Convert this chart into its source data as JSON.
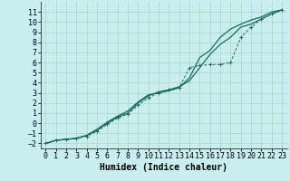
{
  "xlabel": "Humidex (Indice chaleur)",
  "bg_color": "#c8eef0",
  "grid_color": "#b0d8c8",
  "line_color": "#1a6b5a",
  "xlim": [
    -0.5,
    23.5
  ],
  "ylim": [
    -2.5,
    12.0
  ],
  "xticks": [
    0,
    1,
    2,
    3,
    4,
    5,
    6,
    7,
    8,
    9,
    10,
    11,
    12,
    13,
    14,
    15,
    16,
    17,
    18,
    19,
    20,
    21,
    22,
    23
  ],
  "yticks": [
    -2,
    -1,
    0,
    1,
    2,
    3,
    4,
    5,
    6,
    7,
    8,
    9,
    10,
    11
  ],
  "line1_x": [
    0,
    1,
    2,
    3,
    4,
    5,
    6,
    7,
    8,
    9,
    10,
    11,
    12,
    13,
    14,
    15,
    16,
    17,
    18,
    19,
    20,
    21,
    22,
    23
  ],
  "line1_y": [
    -2.0,
    -1.7,
    -1.6,
    -1.5,
    -1.2,
    -0.6,
    0.1,
    0.7,
    1.2,
    2.1,
    2.8,
    3.0,
    3.2,
    3.5,
    4.5,
    6.5,
    7.2,
    8.5,
    9.3,
    9.8,
    10.2,
    10.5,
    11.0,
    11.2
  ],
  "line2_x": [
    0,
    1,
    2,
    3,
    4,
    5,
    6,
    7,
    8,
    9,
    10,
    11,
    12,
    13,
    14,
    15,
    16,
    17,
    18,
    19,
    20,
    21,
    22,
    23
  ],
  "line2_y": [
    -2.0,
    -1.7,
    -1.6,
    -1.5,
    -1.2,
    -0.7,
    0.0,
    0.6,
    1.0,
    2.0,
    2.7,
    3.1,
    3.3,
    3.6,
    4.2,
    5.5,
    6.8,
    7.8,
    8.5,
    9.5,
    9.8,
    10.3,
    10.8,
    11.2
  ],
  "line3_x": [
    0,
    1,
    2,
    3,
    4,
    5,
    6,
    7,
    8,
    9,
    10,
    11,
    12,
    13,
    14,
    15,
    16,
    17,
    18,
    19,
    20,
    21,
    22,
    23
  ],
  "line3_y": [
    -2.0,
    -1.7,
    -1.6,
    -1.5,
    -1.3,
    -0.8,
    -0.1,
    0.5,
    0.9,
    1.8,
    2.5,
    3.0,
    3.3,
    3.5,
    5.5,
    5.7,
    5.8,
    5.8,
    6.0,
    8.5,
    9.5,
    10.3,
    10.8,
    11.2
  ],
  "xlabel_fontsize": 7,
  "tick_fontsize": 6
}
